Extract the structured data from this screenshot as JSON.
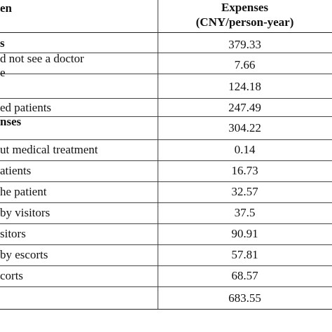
{
  "header": {
    "left": "en",
    "right_line1": "Expenses",
    "right_line2": "(CNY/person-year)"
  },
  "rows": [
    {
      "label": "s",
      "label2": "",
      "value": "379.33",
      "bold": true
    },
    {
      "label": "d not see a doctor",
      "label2": "e",
      "value": "7.66",
      "bold": false
    },
    {
      "label": "",
      "label2": "",
      "value": "124.18",
      "bold": false
    },
    {
      "label": "ed patients",
      "label2": "",
      "value": "247.49",
      "bold": false
    },
    {
      "label": "nses",
      "label2": "",
      "value": "304.22",
      "bold": true
    },
    {
      "label": "ut medical treatment",
      "label2": "",
      "value": "0.14",
      "bold": false
    },
    {
      "label": "atients",
      "label2": "",
      "value": "16.73",
      "bold": false
    },
    {
      "label": "he patient",
      "label2": "",
      "value": "32.57",
      "bold": false
    },
    {
      "label": "by visitors",
      "label2": "",
      "value": "37.5",
      "bold": false
    },
    {
      "label": "sitors",
      "label2": "",
      "value": "90.91",
      "bold": false
    },
    {
      "label": "by escorts",
      "label2": "",
      "value": "57.81",
      "bold": false
    },
    {
      "label": "corts",
      "label2": "",
      "value": "68.57",
      "bold": false
    },
    {
      "label": "",
      "label2": "",
      "value": "683.55",
      "bold": false
    }
  ]
}
